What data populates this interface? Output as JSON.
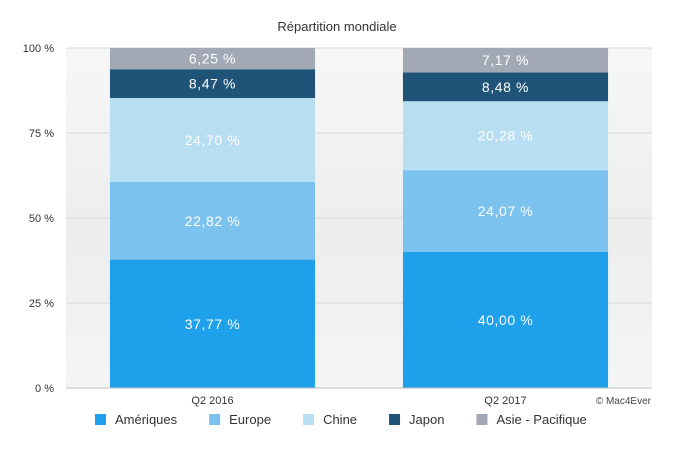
{
  "chart_data": {
    "type": "bar",
    "stacked": true,
    "title": "Répartition mondiale",
    "categories": [
      "Q2 2016",
      "Q2 2017"
    ],
    "ylim": [
      0,
      100
    ],
    "yticks": [
      "0 %",
      "25 %",
      "50 %",
      "75 %",
      "100 %"
    ],
    "ytick_values": [
      0,
      25,
      50,
      75,
      100
    ],
    "grid": true,
    "legend_position": "bottom",
    "series": [
      {
        "name": "Amériques",
        "color": "#1ea0ea",
        "values": [
          37.77,
          40.0
        ],
        "labels": [
          "37,77 %",
          "40,00 %"
        ]
      },
      {
        "name": "Europe",
        "color": "#7cc2ef",
        "values": [
          22.82,
          24.07
        ],
        "labels": [
          "22,82 %",
          "24,07 %"
        ]
      },
      {
        "name": "Chine",
        "color": "#b7def1",
        "values": [
          24.7,
          20.28
        ],
        "labels": [
          "24,70 %",
          "20,28 %"
        ]
      },
      {
        "name": "Japon",
        "color": "#1f5478",
        "values": [
          8.47,
          8.48
        ],
        "labels": [
          "8,47 %",
          "8,48 %"
        ]
      },
      {
        "name": "Asie - Pacifique",
        "color": "#a2a9b5",
        "values": [
          6.25,
          7.17
        ],
        "labels": [
          "6,25 %",
          "7,17 %"
        ]
      }
    ]
  },
  "credit": "© Mac4Ever"
}
